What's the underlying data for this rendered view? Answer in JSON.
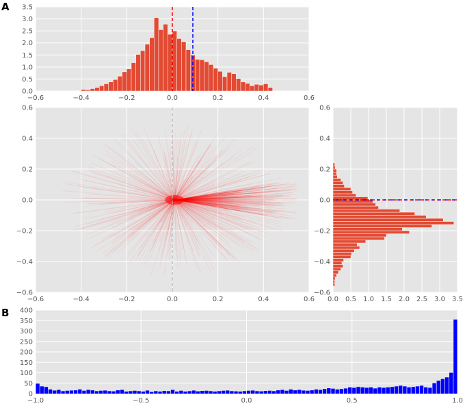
{
  "panel_labels": [
    "A",
    "B"
  ],
  "colors": {
    "background": "#e5e5e5",
    "grid": "#ffffff",
    "hist_red": "#e24a33",
    "line_red": "#ff0000",
    "blue": "#0000ff",
    "dash_red": "#ff0000",
    "dash_blue": "#0000ff",
    "dash_grey": "#bbbbbb"
  },
  "chart_data": [
    {
      "id": "top-histogram",
      "type": "bar",
      "orientation": "vertical",
      "xlim": [
        -0.6,
        0.6
      ],
      "ylim": [
        0,
        3.5
      ],
      "xticks": [
        -0.6,
        -0.4,
        -0.2,
        0.0,
        0.2,
        0.4,
        0.6
      ],
      "yticks": [
        0.0,
        0.5,
        1.0,
        1.5,
        2.0,
        2.5,
        3.0,
        3.5
      ],
      "xtick_labels": [
        "−0.6",
        "−0.4",
        "−0.2",
        "0.0",
        "0.2",
        "0.4",
        "0.6"
      ],
      "ytick_labels": [
        "0.0",
        "0.5",
        "1.0",
        "1.5",
        "2.0",
        "2.5",
        "3.0",
        "3.5"
      ],
      "bin_edges_start": -0.4,
      "bin_width": 0.02,
      "values": [
        0.07,
        0.05,
        0.1,
        0.15,
        0.22,
        0.3,
        0.38,
        0.48,
        0.62,
        0.8,
        0.92,
        1.18,
        1.52,
        1.68,
        1.95,
        2.22,
        3.05,
        2.55,
        2.78,
        2.36,
        2.5,
        2.18,
        2.05,
        1.72,
        1.5,
        1.32,
        1.3,
        1.22,
        1.1,
        0.95,
        0.82,
        0.6,
        0.78,
        0.72,
        0.52,
        0.38,
        0.32,
        0.22,
        0.28,
        0.25,
        0.3,
        0.15
      ],
      "vlines": [
        {
          "x": 0.0,
          "color": "red"
        },
        {
          "x": 0.09,
          "color": "blue"
        }
      ],
      "grid": true
    },
    {
      "id": "center-rays",
      "type": "scatter",
      "description_kind": "radial line segments from origin",
      "xlim": [
        -0.6,
        0.6
      ],
      "ylim": [
        -0.6,
        0.6
      ],
      "xticks": [
        -0.6,
        -0.4,
        -0.2,
        0.0,
        0.2,
        0.4,
        0.6
      ],
      "yticks": [
        -0.6,
        -0.4,
        -0.2,
        0.0,
        0.2,
        0.4,
        0.6
      ],
      "xtick_labels": [
        "−0.6",
        "−0.4",
        "−0.2",
        "0.0",
        "0.2",
        "0.4",
        "0.6"
      ],
      "ytick_labels": [
        "−0.6",
        "−0.4",
        "−0.2",
        "0.0",
        "0.2",
        "0.4",
        "0.6"
      ],
      "vlines": [
        {
          "x": 0.0,
          "color": "grey"
        }
      ],
      "grid": true
    },
    {
      "id": "right-histogram",
      "type": "bar",
      "orientation": "horizontal",
      "xlim": [
        0,
        3.5
      ],
      "ylim": [
        -0.6,
        0.6
      ],
      "xticks": [
        0.0,
        0.5,
        1.0,
        1.5,
        2.0,
        2.5,
        3.0,
        3.5
      ],
      "yticks": [
        -0.6,
        -0.4,
        -0.2,
        0.0,
        0.2,
        0.4,
        0.6
      ],
      "xtick_labels": [
        "0.0",
        "0.5",
        "1.0",
        "1.5",
        "2.0",
        "2.5",
        "3.0",
        "3.5"
      ],
      "ytick_labels": [
        "−0.6",
        "−0.4",
        "−0.2",
        "0.0",
        "0.2",
        "0.4",
        "0.6"
      ],
      "bin_edges_start": -0.56,
      "bin_width": 0.02,
      "values": [
        0.05,
        0.05,
        0.06,
        0.1,
        0.15,
        0.22,
        0.28,
        0.25,
        0.3,
        0.5,
        0.52,
        0.6,
        0.75,
        0.68,
        0.92,
        1.45,
        1.5,
        2.15,
        1.95,
        2.78,
        3.4,
        3.1,
        2.62,
        2.3,
        1.88,
        1.28,
        1.2,
        1.12,
        0.98,
        0.65,
        0.55,
        0.5,
        0.32,
        0.28,
        0.22,
        0.12,
        0.1,
        0.1,
        0.06,
        0.05
      ],
      "hlines": [
        {
          "y": 0.0,
          "color": "red"
        },
        {
          "y": 0.0,
          "color": "blue"
        }
      ],
      "grid": true
    },
    {
      "id": "bottom-histogram",
      "type": "bar",
      "orientation": "vertical",
      "xlim": [
        -1.0,
        1.0
      ],
      "ylim": [
        0,
        400
      ],
      "xticks": [
        -1.0,
        -0.5,
        0.0,
        0.5,
        1.0
      ],
      "yticks": [
        0,
        50,
        100,
        150,
        200,
        250,
        300,
        350,
        400
      ],
      "xtick_labels": [
        "−1.0",
        "−0.5",
        "0.0",
        "0.5",
        "1.0"
      ],
      "ytick_labels": [
        "0",
        "50",
        "100",
        "150",
        "200",
        "250",
        "300",
        "350",
        "400"
      ],
      "bin_edges_start": -1.0,
      "bin_width": 0.02,
      "values": [
        48,
        35,
        32,
        20,
        15,
        18,
        12,
        14,
        15,
        16,
        20,
        14,
        18,
        16,
        12,
        14,
        15,
        12,
        11,
        16,
        18,
        10,
        12,
        14,
        12,
        10,
        15,
        8,
        12,
        10,
        13,
        12,
        18,
        10,
        14,
        10,
        12,
        15,
        11,
        13,
        14,
        12,
        10,
        12,
        14,
        15,
        12,
        11,
        10,
        12,
        14,
        15,
        12,
        11,
        13,
        14,
        12,
        16,
        18,
        14,
        20,
        16,
        18,
        15,
        14,
        16,
        20,
        18,
        22,
        26,
        24,
        20,
        22,
        25,
        30,
        28,
        32,
        30,
        28,
        30,
        25,
        30,
        28,
        30,
        32,
        35,
        38,
        35,
        30,
        32,
        35,
        38,
        30,
        28,
        50,
        62,
        70,
        78,
        100,
        355
      ],
      "grid": true
    }
  ]
}
